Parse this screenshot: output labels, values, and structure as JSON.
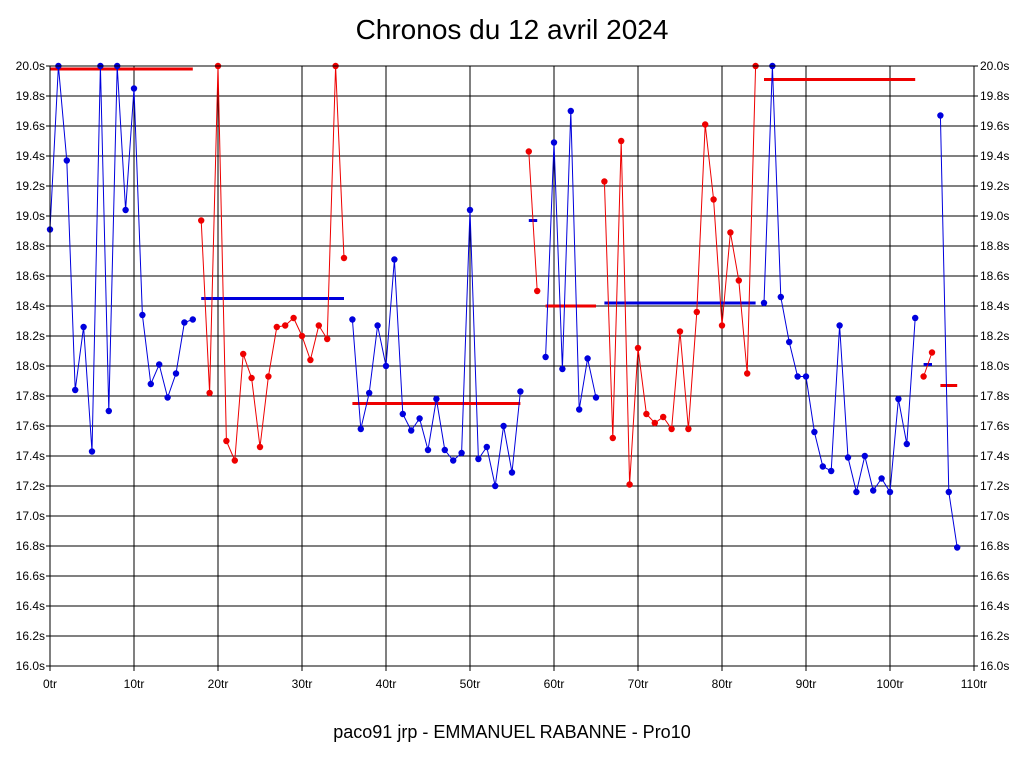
{
  "chart_data": {
    "type": "line",
    "title": "Chronos du 12 avril 2024",
    "footer": "paco91 jrp - EMMANUEL RABANNE - Pro10",
    "xlim": [
      0,
      110
    ],
    "ylim": [
      16.0,
      20.0
    ],
    "x_ticks": [
      "0tr",
      "10tr",
      "20tr",
      "30tr",
      "40tr",
      "50tr",
      "60tr",
      "70tr",
      "80tr",
      "90tr",
      "100tr",
      "110tr"
    ],
    "y_ticks": [
      "16.0s",
      "16.2s",
      "16.4s",
      "16.6s",
      "16.8s",
      "17.0s",
      "17.2s",
      "17.4s",
      "17.6s",
      "17.8s",
      "18.0s",
      "18.2s",
      "18.4s",
      "18.6s",
      "18.8s",
      "19.0s",
      "19.2s",
      "19.4s",
      "19.6s",
      "19.8s",
      "20.0s"
    ],
    "grid": true,
    "colors": {
      "blue": "#0000dd",
      "red": "#ee0000"
    },
    "series": [
      {
        "color": "blue",
        "x": [
          0,
          1,
          2,
          3,
          4,
          5,
          6,
          7,
          8,
          9,
          10,
          11,
          12,
          13,
          14,
          15,
          16,
          17
        ],
        "y": [
          18.91,
          20.0,
          19.37,
          17.84,
          18.26,
          17.43,
          20.0,
          17.7,
          20.0,
          19.04,
          19.85,
          18.34,
          17.88,
          18.01,
          17.79,
          17.95,
          18.29,
          18.31
        ]
      },
      {
        "color": "red",
        "x": [
          18,
          19,
          20,
          21,
          22,
          23,
          24,
          25,
          26,
          27,
          28,
          29,
          30,
          31,
          32,
          33,
          34,
          35
        ],
        "y": [
          18.97,
          17.82,
          20.0,
          17.5,
          17.37,
          18.08,
          17.92,
          17.46,
          17.93,
          18.26,
          18.27,
          18.32,
          18.2,
          18.04,
          18.27,
          18.18,
          20.0,
          18.72
        ]
      },
      {
        "color": "blue",
        "x": [
          36,
          37,
          38,
          39,
          40,
          41,
          42,
          43,
          44,
          45,
          46,
          47,
          48,
          49,
          50,
          51,
          52,
          53,
          54,
          55,
          56
        ],
        "y": [
          18.31,
          17.58,
          17.82,
          18.27,
          18.0,
          18.71,
          17.68,
          17.57,
          17.65,
          17.44,
          17.78,
          17.44,
          17.37,
          17.42,
          19.04,
          17.38,
          17.46,
          17.2,
          17.6,
          17.29,
          17.83
        ]
      },
      {
        "color": "red",
        "x": [
          57,
          58
        ],
        "y": [
          19.43,
          18.5
        ]
      },
      {
        "color": "blue",
        "x": [
          59,
          60,
          61,
          62,
          63,
          64,
          65
        ],
        "y": [
          18.06,
          19.49,
          17.98,
          19.7,
          17.71,
          18.05,
          17.79
        ]
      },
      {
        "color": "red",
        "x": [
          66,
          67,
          68,
          69,
          70,
          71,
          72,
          73,
          74,
          75,
          76,
          77,
          78,
          79,
          80,
          81,
          82,
          83,
          84
        ],
        "y": [
          19.23,
          17.52,
          19.5,
          17.21,
          18.12,
          17.68,
          17.62,
          17.66,
          17.58,
          18.23,
          17.58,
          18.36,
          19.61,
          19.11,
          18.27,
          18.89,
          18.57,
          17.95,
          20.0
        ]
      },
      {
        "color": "blue",
        "x": [
          85,
          86,
          87,
          88,
          89,
          90,
          91,
          92,
          93,
          94,
          95,
          96,
          97,
          98,
          99,
          100,
          101,
          102,
          103
        ],
        "y": [
          18.42,
          20.0,
          18.46,
          18.16,
          17.93,
          17.93,
          17.56,
          17.33,
          17.3,
          18.27,
          17.39,
          17.16,
          17.4,
          17.17,
          17.25,
          17.16,
          17.78,
          17.48,
          18.32
        ]
      },
      {
        "color": "red",
        "x": [
          104,
          105
        ],
        "y": [
          17.93,
          18.09
        ]
      },
      {
        "color": "blue",
        "x": [
          106,
          107,
          108
        ],
        "y": [
          19.67,
          17.16,
          16.79
        ]
      }
    ],
    "average_lines": [
      {
        "color": "red",
        "x": [
          0,
          17
        ],
        "y": 19.98
      },
      {
        "color": "blue",
        "x": [
          18,
          35
        ],
        "y": 18.45
      },
      {
        "color": "red",
        "x": [
          36,
          56
        ],
        "y": 17.75
      },
      {
        "color": "blue",
        "x": [
          57,
          58
        ],
        "y": 18.97
      },
      {
        "color": "red",
        "x": [
          59,
          65
        ],
        "y": 18.4
      },
      {
        "color": "blue",
        "x": [
          66,
          84
        ],
        "y": 18.42
      },
      {
        "color": "red",
        "x": [
          85,
          103
        ],
        "y": 19.91
      },
      {
        "color": "blue",
        "x": [
          104,
          105
        ],
        "y": 18.01
      },
      {
        "color": "red",
        "x": [
          106,
          108
        ],
        "y": 17.87
      }
    ]
  }
}
